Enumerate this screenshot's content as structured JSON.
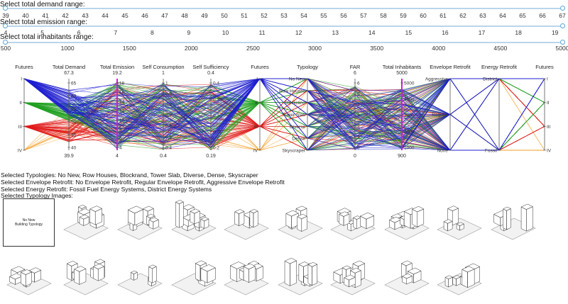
{
  "sliders": {
    "demand": {
      "label": "Select total demand range:",
      "ticks": [
        "39",
        "40",
        "41",
        "42",
        "43",
        "44",
        "45",
        "46",
        "47",
        "48",
        "49",
        "50",
        "51",
        "52",
        "53",
        "54",
        "55",
        "56",
        "57",
        "58",
        "59",
        "60",
        "61",
        "62",
        "63",
        "64",
        "65",
        "66",
        "67"
      ],
      "range": [
        39,
        67
      ]
    },
    "emission": {
      "label": "Select total emission range:",
      "ticks": [
        "4",
        "5",
        "6",
        "7",
        "8",
        "9",
        "10",
        "11",
        "12",
        "13",
        "14",
        "15",
        "16",
        "17",
        "18",
        "19"
      ],
      "range": [
        4,
        19.2
      ]
    },
    "inhabitants": {
      "label": "Select total inhabitants range:",
      "ticks": [
        "500",
        "1000",
        "1500",
        "2000",
        "2500",
        "3000",
        "3500",
        "4000",
        "4500",
        "5000"
      ],
      "range": [
        500,
        5000
      ]
    }
  },
  "chart_data": {
    "type": "parallel_coordinates",
    "axes": [
      {
        "name": "Futures",
        "labels": [
          "I",
          "II",
          "III",
          "IV"
        ]
      },
      {
        "name": "Total Demand",
        "max": "67.3",
        "min": "39.9",
        "labels": [
          "65",
          "60",
          "55",
          "50",
          "45",
          "40"
        ]
      },
      {
        "name": "Total Emission",
        "max": "19.2",
        "min": "4",
        "labels": [
          "18",
          "16",
          "14",
          "12",
          "10",
          "8",
          "6",
          "4"
        ]
      },
      {
        "name": "Self Consumption",
        "max": "1",
        "min": "0.4",
        "labels": [
          "1",
          "0.9",
          "0.8",
          "0.7",
          "0.6",
          "0.5",
          "0.4"
        ]
      },
      {
        "name": "Self Sufficiency",
        "max": "0.4",
        "min": "0.19",
        "labels": [
          "0.4",
          "0.35",
          "0.3",
          "0.25",
          "0.2"
        ]
      },
      {
        "name": "Futures",
        "labels": [
          "I",
          "II",
          "III",
          "IV"
        ]
      },
      {
        "name": "Typology",
        "labels": [
          "No New",
          "Row Houses",
          "Blockrand",
          "Tower Slab",
          "Diverse",
          "Dense",
          "Skyscraper"
        ]
      },
      {
        "name": "FAR",
        "max": "6",
        "min": "0",
        "labels": [
          "6",
          "5",
          "4",
          "3",
          "2",
          "1",
          "0"
        ]
      },
      {
        "name": "Total Inhabitants",
        "max": "5000",
        "min": "900",
        "labels": [
          "5000",
          "4000",
          "3000",
          "2000",
          "1000"
        ]
      },
      {
        "name": "Envelope Retrofit",
        "labels": [
          "Aggressive",
          "Regular",
          "None"
        ]
      },
      {
        "name": "Energy Retrofit",
        "labels": [
          "District",
          "Fossil"
        ]
      },
      {
        "name": "Futures",
        "labels": [
          "I",
          "II",
          "III",
          "IV"
        ]
      }
    ],
    "series_colors": {
      "I": "#1f1fd0",
      "II": "#22a022",
      "III": "#e01b1b",
      "IV": "#f29a1a"
    },
    "highlight_color": "#cc22cc"
  },
  "selection": {
    "typologies": "Selected Typologies: No New, Row Houses, Blockrand, Tower Slab, Diverse, Dense, Skyscraper",
    "envelope": "Selected Envelope Retrofit: No Envelope Retrofit, Regular Envelope Retrofit, Aggressive Envelope Retrofit",
    "energy": "Selected Energy Retrofit: Fossil Fuel Energy Systems, District Energy Systems",
    "images_title": "Selected Typology Images:"
  },
  "thumbnails": {
    "no_new_text_1": "No New",
    "no_new_text_2": "Building Typology"
  }
}
